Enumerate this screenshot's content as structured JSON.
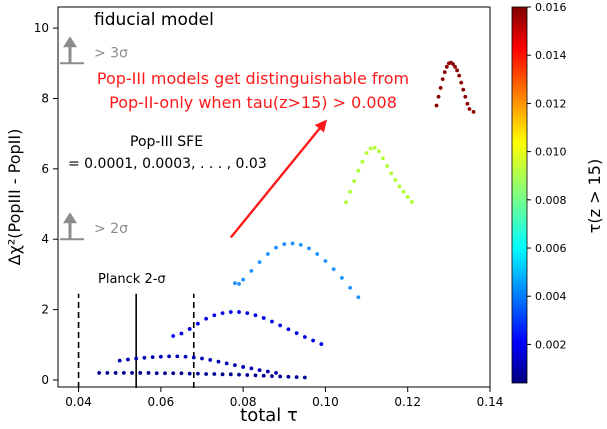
{
  "chart_data": {
    "type": "scatter",
    "title": "fiducial model",
    "xlabel": "total τ",
    "ylabel": "Δχ²(PopIII - PopII)",
    "xlim": [
      0.035,
      0.14
    ],
    "ylim": [
      -0.2,
      10.6
    ],
    "xticks": [
      0.04,
      0.06,
      0.08,
      0.1,
      0.12,
      0.14
    ],
    "xtick_labels": [
      "0.04",
      "0.06",
      "0.08",
      "0.10",
      "0.12",
      "0.14"
    ],
    "yticks": [
      0,
      2,
      4,
      6,
      8,
      10
    ],
    "ytick_labels": [
      "0",
      "2",
      "4",
      "6",
      "8",
      "10"
    ],
    "grid": false,
    "colorbar": {
      "label": "τ(z > 15)",
      "range": [
        0.0004,
        0.016
      ],
      "ticks": [
        0.002,
        0.004,
        0.006,
        0.008,
        0.01,
        0.012,
        0.014,
        0.016
      ],
      "tick_labels": [
        "0.002",
        "0.004",
        "0.006",
        "0.008",
        "0.010",
        "0.012",
        "0.014",
        "0.016"
      ],
      "colormap": "jet"
    },
    "series": [
      {
        "tau_z15": 0.0005,
        "color": "#00008f",
        "points": [
          [
            0.045,
            0.2
          ],
          [
            0.047,
            0.2
          ],
          [
            0.049,
            0.2
          ],
          [
            0.051,
            0.2
          ],
          [
            0.053,
            0.2
          ],
          [
            0.055,
            0.2
          ],
          [
            0.057,
            0.2
          ],
          [
            0.059,
            0.19
          ],
          [
            0.061,
            0.19
          ],
          [
            0.063,
            0.19
          ],
          [
            0.065,
            0.19
          ],
          [
            0.067,
            0.18
          ],
          [
            0.069,
            0.18
          ],
          [
            0.071,
            0.17
          ],
          [
            0.073,
            0.17
          ],
          [
            0.075,
            0.16
          ],
          [
            0.077,
            0.16
          ],
          [
            0.079,
            0.15
          ],
          [
            0.081,
            0.14
          ],
          [
            0.083,
            0.13
          ],
          [
            0.085,
            0.12
          ],
          [
            0.087,
            0.11
          ],
          [
            0.089,
            0.1
          ],
          [
            0.091,
            0.09
          ],
          [
            0.093,
            0.08
          ],
          [
            0.095,
            0.07
          ]
        ]
      },
      {
        "tau_z15": 0.0012,
        "color": "#0000b4",
        "points": [
          [
            0.05,
            0.55
          ],
          [
            0.052,
            0.58
          ],
          [
            0.054,
            0.61
          ],
          [
            0.056,
            0.63
          ],
          [
            0.058,
            0.65
          ],
          [
            0.06,
            0.66
          ],
          [
            0.062,
            0.67
          ],
          [
            0.064,
            0.67
          ],
          [
            0.066,
            0.66
          ],
          [
            0.068,
            0.64
          ],
          [
            0.07,
            0.61
          ],
          [
            0.072,
            0.57
          ],
          [
            0.074,
            0.52
          ],
          [
            0.076,
            0.47
          ],
          [
            0.078,
            0.42
          ],
          [
            0.08,
            0.37
          ],
          [
            0.082,
            0.33
          ],
          [
            0.084,
            0.28
          ],
          [
            0.086,
            0.24
          ],
          [
            0.088,
            0.2
          ]
        ]
      },
      {
        "tau_z15": 0.0025,
        "color": "#0000e6",
        "points": [
          [
            0.063,
            1.25
          ],
          [
            0.065,
            1.32
          ],
          [
            0.067,
            1.45
          ],
          [
            0.069,
            1.6
          ],
          [
            0.071,
            1.74
          ],
          [
            0.073,
            1.84
          ],
          [
            0.075,
            1.9
          ],
          [
            0.077,
            1.93
          ],
          [
            0.079,
            1.93
          ],
          [
            0.081,
            1.9
          ],
          [
            0.083,
            1.84
          ],
          [
            0.085,
            1.76
          ],
          [
            0.087,
            1.66
          ],
          [
            0.089,
            1.55
          ],
          [
            0.091,
            1.44
          ],
          [
            0.093,
            1.33
          ],
          [
            0.095,
            1.22
          ],
          [
            0.097,
            1.12
          ],
          [
            0.099,
            1.02
          ]
        ]
      },
      {
        "tau_z15": 0.005,
        "color": "#1e90ff",
        "points": [
          [
            0.078,
            2.75
          ],
          [
            0.079,
            2.73
          ],
          [
            0.08,
            2.85
          ],
          [
            0.082,
            3.1
          ],
          [
            0.084,
            3.35
          ],
          [
            0.086,
            3.58
          ],
          [
            0.088,
            3.76
          ],
          [
            0.09,
            3.86
          ],
          [
            0.092,
            3.88
          ],
          [
            0.094,
            3.84
          ],
          [
            0.096,
            3.74
          ],
          [
            0.098,
            3.58
          ],
          [
            0.1,
            3.38
          ],
          [
            0.102,
            3.15
          ],
          [
            0.104,
            2.9
          ],
          [
            0.106,
            2.62
          ],
          [
            0.108,
            2.35
          ]
        ]
      },
      {
        "tau_z15": 0.009,
        "color": "#adff2f",
        "points": [
          [
            0.105,
            5.05
          ],
          [
            0.106,
            5.35
          ],
          [
            0.107,
            5.65
          ],
          [
            0.108,
            5.95
          ],
          [
            0.109,
            6.2
          ],
          [
            0.11,
            6.45
          ],
          [
            0.111,
            6.58
          ],
          [
            0.112,
            6.6
          ],
          [
            0.113,
            6.5
          ],
          [
            0.114,
            6.3
          ],
          [
            0.115,
            6.08
          ],
          [
            0.116,
            5.87
          ],
          [
            0.117,
            5.68
          ],
          [
            0.118,
            5.5
          ],
          [
            0.119,
            5.35
          ],
          [
            0.12,
            5.2
          ],
          [
            0.121,
            5.06
          ]
        ]
      },
      {
        "tau_z15": 0.015,
        "color": "#8b0000",
        "points": [
          [
            0.127,
            7.8
          ],
          [
            0.1275,
            8.05
          ],
          [
            0.128,
            8.3
          ],
          [
            0.1285,
            8.55
          ],
          [
            0.129,
            8.75
          ],
          [
            0.1295,
            8.9
          ],
          [
            0.13,
            9.0
          ],
          [
            0.1305,
            9.02
          ],
          [
            0.131,
            8.98
          ],
          [
            0.1315,
            8.9
          ],
          [
            0.132,
            8.8
          ],
          [
            0.1325,
            8.65
          ],
          [
            0.133,
            8.45
          ],
          [
            0.1335,
            8.25
          ],
          [
            0.134,
            8.05
          ],
          [
            0.1345,
            7.85
          ],
          [
            0.135,
            7.7
          ],
          [
            0.136,
            7.62
          ]
        ]
      }
    ],
    "annotations": {
      "gt3sigma": {
        "label": "> 3σ",
        "y": 9.0
      },
      "gt2sigma": {
        "label": "> 2σ",
        "y": 4.0
      },
      "planck": {
        "label": "Planck 2-σ",
        "center": 0.054,
        "low": 0.04,
        "high": 0.068,
        "top": 2.45
      },
      "sfe_title": "Pop-III SFE",
      "sfe_values": "= 0.0001, 0.0003, . . . , 0.03",
      "message_line1": "Pop-III models get distinguishable from",
      "message_line2": "Pop-II-only when tau(z>15) > 0.008",
      "arrow": {
        "from": [
          0.077,
          4.05
        ],
        "to": [
          0.1,
          7.35
        ]
      }
    },
    "colors": {
      "marker_gray": "#8c8c8c",
      "message_red": "#ff1a1a"
    }
  }
}
